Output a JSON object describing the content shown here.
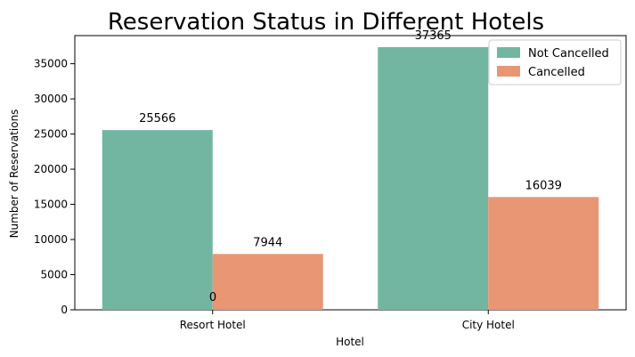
{
  "chart_data": {
    "type": "bar",
    "title": "Reservation Status in Different Hotels",
    "xlabel": "Hotel",
    "ylabel": "Number of Reservations",
    "categories": [
      "Resort Hotel",
      "City Hotel"
    ],
    "series": [
      {
        "name": "Not Cancelled",
        "values": [
          25566,
          37365
        ],
        "color": "#72b6a1"
      },
      {
        "name": "Cancelled",
        "values": [
          7944,
          16039
        ],
        "color": "#e99675"
      }
    ],
    "extra_label": "0",
    "yticks": [
      0,
      5000,
      10000,
      15000,
      20000,
      25000,
      30000,
      35000
    ],
    "ylim": [
      0,
      39000
    ],
    "grid": false,
    "legend_position": "top-right"
  }
}
